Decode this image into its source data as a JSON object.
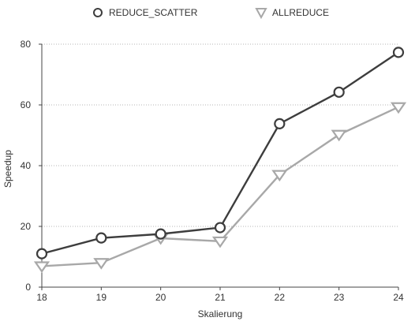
{
  "chart_data": {
    "type": "line",
    "x": [
      18,
      19,
      20,
      21,
      22,
      23,
      24
    ],
    "series": [
      {
        "name": "REDUCE_SCATTER",
        "values": [
          11,
          16.2,
          17.5,
          19.6,
          53.8,
          64.2,
          77.3
        ],
        "color": "#3d3d3d",
        "marker": "circle"
      },
      {
        "name": "ALLREDUCE",
        "values": [
          6.9,
          8,
          16.1,
          15.1,
          37,
          50.2,
          59.3
        ],
        "color": "#a8a8a8",
        "marker": "triangle-down"
      }
    ],
    "xlabel": "Skalierung",
    "ylabel": "Speedup",
    "ylim": [
      0,
      80
    ],
    "yticks": [
      0,
      20,
      40,
      60,
      80
    ],
    "xticks": [
      18,
      19,
      20,
      21,
      22,
      23,
      24
    ],
    "grid": "horizontal dotted",
    "legend_position": "top-center"
  }
}
